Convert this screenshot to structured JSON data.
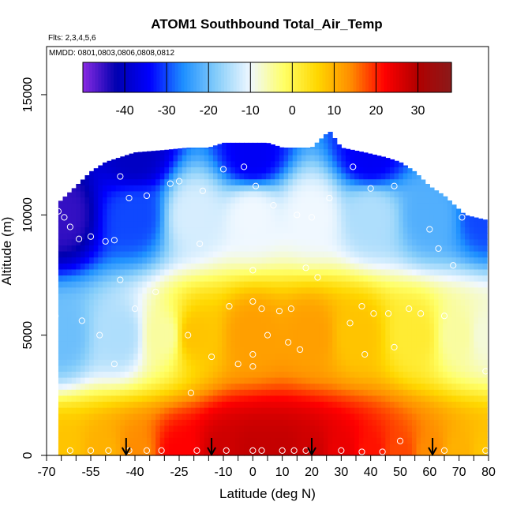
{
  "chart_data": {
    "type": "heatmap",
    "title": "ATOM1 Southbound Total_Air_Temp",
    "annotations": [
      "Flts: 2,3,4,5,6",
      "MMDD: 0801,0803,0806,0808,0812"
    ],
    "xlabel": "Latitude (deg N)",
    "ylabel": "Altitude (m)",
    "xlim": [
      -70,
      80
    ],
    "ylim": [
      0,
      17000
    ],
    "x_ticks": [
      -70,
      -55,
      -40,
      -25,
      -10,
      0,
      10,
      20,
      30,
      40,
      50,
      60,
      70,
      80
    ],
    "x_tick_labels": [
      "-70",
      "-55",
      "-40",
      "-25",
      "-10",
      "0",
      "10",
      "20",
      "30",
      "40",
      "50",
      "60",
      "70",
      "80"
    ],
    "y_ticks": [
      0,
      5000,
      10000,
      15000
    ],
    "y_tick_labels": [
      "0",
      "5000",
      "10000",
      "15000"
    ],
    "colorbar": {
      "range": [
        -50,
        38
      ],
      "ticks": [
        -40,
        -30,
        -20,
        -10,
        0,
        10,
        20,
        30
      ],
      "tick_labels": [
        "-40",
        "-30",
        "-20",
        "-10",
        "0",
        "10",
        "20",
        "30"
      ],
      "colors": [
        "#8a2be2",
        "#0000b0",
        "#0000ff",
        "#1e90ff",
        "#87cefa",
        "#f0f8ff",
        "#ffff66",
        "#ffd700",
        "#ff8c00",
        "#ff0000",
        "#b00000",
        "#8b1a1a"
      ]
    },
    "coverage_top_altitude": [
      [
        -66,
        10500
      ],
      [
        -60,
        11200
      ],
      [
        -55,
        11800
      ],
      [
        -50,
        12200
      ],
      [
        -45,
        12400
      ],
      [
        -40,
        12600
      ],
      [
        -30,
        12700
      ],
      [
        -22,
        12800
      ],
      [
        -15,
        12800
      ],
      [
        -10,
        13000
      ],
      [
        0,
        13000
      ],
      [
        5,
        13000
      ],
      [
        10,
        12800
      ],
      [
        20,
        12800
      ],
      [
        26,
        13500
      ],
      [
        30,
        12800
      ],
      [
        38,
        12600
      ],
      [
        45,
        12400
      ],
      [
        50,
        12200
      ],
      [
        55,
        11800
      ],
      [
        60,
        11200
      ],
      [
        65,
        10800
      ],
      [
        72,
        10000
      ],
      [
        79,
        9800
      ]
    ],
    "temperature_profile_key_points": [
      {
        "lat": -65,
        "alt": 0,
        "temp": 8
      },
      {
        "lat": -50,
        "alt": 0,
        "temp": 10
      },
      {
        "lat": -40,
        "alt": 0,
        "temp": 14
      },
      {
        "lat": -25,
        "alt": 0,
        "temp": 22
      },
      {
        "lat": -10,
        "alt": 0,
        "temp": 27
      },
      {
        "lat": 0,
        "alt": 0,
        "temp": 28
      },
      {
        "lat": 10,
        "alt": 0,
        "temp": 28
      },
      {
        "lat": 20,
        "alt": 0,
        "temp": 27
      },
      {
        "lat": 30,
        "alt": 0,
        "temp": 24
      },
      {
        "lat": 40,
        "alt": 0,
        "temp": 21
      },
      {
        "lat": 50,
        "alt": 0,
        "temp": 18
      },
      {
        "lat": 60,
        "alt": 0,
        "temp": 14
      },
      {
        "lat": 70,
        "alt": 0,
        "temp": 10
      },
      {
        "lat": 79,
        "alt": 0,
        "temp": 8
      },
      {
        "lat": -65,
        "alt": 5000,
        "temp": -20
      },
      {
        "lat": -45,
        "alt": 5000,
        "temp": -15
      },
      {
        "lat": -30,
        "alt": 5000,
        "temp": -5
      },
      {
        "lat": -20,
        "alt": 5000,
        "temp": 8
      },
      {
        "lat": 0,
        "alt": 5000,
        "temp": 12
      },
      {
        "lat": 20,
        "alt": 5000,
        "temp": 12
      },
      {
        "lat": 35,
        "alt": 5000,
        "temp": 8
      },
      {
        "lat": 55,
        "alt": 5000,
        "temp": 2
      },
      {
        "lat": 70,
        "alt": 5000,
        "temp": -5
      },
      {
        "lat": 79,
        "alt": 5000,
        "temp": -8
      },
      {
        "lat": -65,
        "alt": 10000,
        "temp": -45
      },
      {
        "lat": -40,
        "alt": 10000,
        "temp": -30
      },
      {
        "lat": -20,
        "alt": 10000,
        "temp": -12
      },
      {
        "lat": 0,
        "alt": 10000,
        "temp": -10
      },
      {
        "lat": 20,
        "alt": 10000,
        "temp": -10
      },
      {
        "lat": 40,
        "alt": 10000,
        "temp": -15
      },
      {
        "lat": 60,
        "alt": 10000,
        "temp": -22
      },
      {
        "lat": 79,
        "alt": 10000,
        "temp": -30
      },
      {
        "lat": -40,
        "alt": 12500,
        "temp": -40
      },
      {
        "lat": 0,
        "alt": 12500,
        "temp": -35
      },
      {
        "lat": 40,
        "alt": 12500,
        "temp": -35
      }
    ],
    "observation_points": [
      {
        "lat": -66,
        "alt": 10150
      },
      {
        "lat": -64,
        "alt": 9900
      },
      {
        "lat": -62,
        "alt": 9500
      },
      {
        "lat": -59,
        "alt": 9000
      },
      {
        "lat": -55,
        "alt": 9100
      },
      {
        "lat": -50,
        "alt": 8900
      },
      {
        "lat": -47,
        "alt": 8950
      },
      {
        "lat": -45,
        "alt": 11600
      },
      {
        "lat": -42,
        "alt": 10700
      },
      {
        "lat": -36,
        "alt": 10800
      },
      {
        "lat": -28,
        "alt": 11300
      },
      {
        "lat": -25,
        "alt": 11400
      },
      {
        "lat": -17,
        "alt": 11000
      },
      {
        "lat": -10,
        "alt": 11900
      },
      {
        "lat": -3,
        "alt": 12000
      },
      {
        "lat": 1,
        "alt": 11200
      },
      {
        "lat": 7,
        "alt": 10400
      },
      {
        "lat": 15,
        "alt": 10000
      },
      {
        "lat": 20,
        "alt": 9900
      },
      {
        "lat": 26,
        "alt": 10700
      },
      {
        "lat": 34,
        "alt": 12000
      },
      {
        "lat": 40,
        "alt": 11100
      },
      {
        "lat": 48,
        "alt": 11200
      },
      {
        "lat": 60,
        "alt": 9400
      },
      {
        "lat": 63,
        "alt": 8600
      },
      {
        "lat": 71,
        "alt": 9900
      },
      {
        "lat": -67,
        "alt": 5800
      },
      {
        "lat": -58,
        "alt": 5600
      },
      {
        "lat": -45,
        "alt": 7300
      },
      {
        "lat": -40,
        "alt": 6100
      },
      {
        "lat": -33,
        "alt": 6800
      },
      {
        "lat": -18,
        "alt": 8800
      },
      {
        "lat": -8,
        "alt": 6200
      },
      {
        "lat": 0,
        "alt": 7700
      },
      {
        "lat": 0,
        "alt": 6400
      },
      {
        "lat": 3,
        "alt": 6100
      },
      {
        "lat": 9,
        "alt": 6000
      },
      {
        "lat": 13,
        "alt": 6100
      },
      {
        "lat": 18,
        "alt": 7800
      },
      {
        "lat": 22,
        "alt": 7400
      },
      {
        "lat": 33,
        "alt": 5500
      },
      {
        "lat": 37,
        "alt": 6200
      },
      {
        "lat": 41,
        "alt": 5900
      },
      {
        "lat": 46,
        "alt": 5900
      },
      {
        "lat": 53,
        "alt": 6100
      },
      {
        "lat": 57,
        "alt": 5900
      },
      {
        "lat": 65,
        "alt": 5800
      },
      {
        "lat": 68,
        "alt": 7900
      },
      {
        "lat": -47,
        "alt": 3800
      },
      {
        "lat": -52,
        "alt": 5000
      },
      {
        "lat": -22,
        "alt": 5000
      },
      {
        "lat": -14,
        "alt": 4100
      },
      {
        "lat": -5,
        "alt": 3800
      },
      {
        "lat": 0,
        "alt": 4200
      },
      {
        "lat": 0,
        "alt": 3700
      },
      {
        "lat": 5,
        "alt": 5000
      },
      {
        "lat": 12,
        "alt": 4700
      },
      {
        "lat": 16,
        "alt": 4400
      },
      {
        "lat": 38,
        "alt": 4200
      },
      {
        "lat": 48,
        "alt": 4500
      },
      {
        "lat": 79,
        "alt": 3500
      },
      {
        "lat": -21,
        "alt": 2600
      },
      {
        "lat": -62,
        "alt": 200
      },
      {
        "lat": -55,
        "alt": 200
      },
      {
        "lat": -49,
        "alt": 200
      },
      {
        "lat": -42,
        "alt": 200
      },
      {
        "lat": -36,
        "alt": 200
      },
      {
        "lat": -31,
        "alt": 200
      },
      {
        "lat": -19,
        "alt": 200
      },
      {
        "lat": -9,
        "alt": 200
      },
      {
        "lat": 0,
        "alt": 200
      },
      {
        "lat": 3,
        "alt": 200
      },
      {
        "lat": 10,
        "alt": 200
      },
      {
        "lat": 14,
        "alt": 200
      },
      {
        "lat": 18,
        "alt": 200
      },
      {
        "lat": 30,
        "alt": 200
      },
      {
        "lat": 37,
        "alt": 150
      },
      {
        "lat": 44,
        "alt": 150
      },
      {
        "lat": 50,
        "alt": 600
      },
      {
        "lat": 65,
        "alt": 200
      },
      {
        "lat": 79,
        "alt": 200
      }
    ],
    "profile_markers_lat": [
      -43,
      -14,
      20,
      61
    ]
  }
}
